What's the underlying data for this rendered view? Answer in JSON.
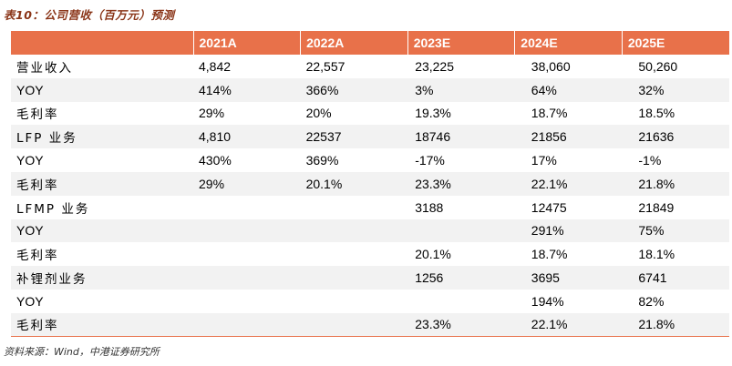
{
  "title": "表10：公司营收（百万元）预测",
  "table": {
    "headers": [
      "",
      "2021A",
      "2022A",
      "2023E",
      "2024E",
      "2025E"
    ],
    "rows": [
      [
        "营业收入",
        "4,842",
        "22,557",
        "23,225",
        "38,060",
        "50,260"
      ],
      [
        "YOY",
        "414%",
        "366%",
        "3%",
        "64%",
        "32%"
      ],
      [
        "毛利率",
        "29%",
        "20%",
        "19.3%",
        "18.7%",
        "18.5%"
      ],
      [
        "LFP 业务",
        "4,810",
        "22537",
        "18746",
        "21856",
        "21636"
      ],
      [
        "YOY",
        "430%",
        "369%",
        "-17%",
        "17%",
        "-1%"
      ],
      [
        "毛利率",
        "29%",
        "20.1%",
        "23.3%",
        "22.1%",
        "21.8%"
      ],
      [
        "LFMP 业务",
        "",
        "",
        "3188",
        "12475",
        "21849"
      ],
      [
        "YOY",
        "",
        "",
        "",
        "291%",
        "75%"
      ],
      [
        "毛利率",
        "",
        "",
        "20.1%",
        "18.7%",
        "18.1%"
      ],
      [
        "补锂剂业务",
        "",
        "",
        "1256",
        "3695",
        "6741"
      ],
      [
        "YOY",
        "",
        "",
        "",
        "194%",
        "82%"
      ],
      [
        "毛利率",
        "",
        "",
        "23.3%",
        "22.1%",
        "21.8%"
      ]
    ]
  },
  "source": "资料来源：Wind，中港证券研究所",
  "colors": {
    "header_bg": "#e8714a",
    "title": "#8a3518",
    "stripe": "#f2f2f2"
  }
}
